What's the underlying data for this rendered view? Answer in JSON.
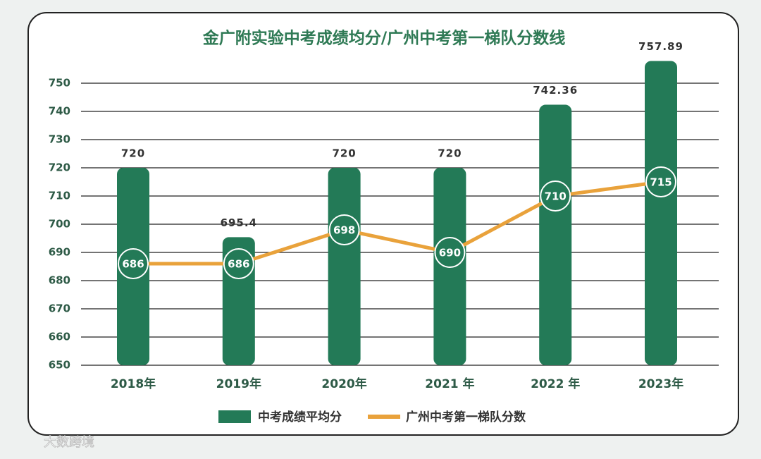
{
  "chart_data": {
    "type": "bar",
    "title": "金广附实验中考成绩均分/广州中考第一梯队分数线",
    "categories": [
      "2018年",
      "2019年",
      "2020年",
      "2021 年",
      "2022 年",
      "2023年"
    ],
    "series": [
      {
        "name": "中考成绩平均分",
        "type": "bar",
        "color": "#237a57",
        "values": [
          720,
          695.4,
          720,
          720,
          742.36,
          757.89
        ]
      },
      {
        "name": "广州中考第一梯队分数",
        "type": "line",
        "color": "#e9a23b",
        "values": [
          686,
          686,
          698,
          690,
          710,
          715
        ]
      }
    ],
    "ylim": [
      650,
      760
    ],
    "yticks": [
      650,
      660,
      670,
      680,
      690,
      700,
      710,
      720,
      730,
      740,
      750
    ],
    "grid": true,
    "legend": "bottom",
    "watermark": "大数跨境"
  }
}
